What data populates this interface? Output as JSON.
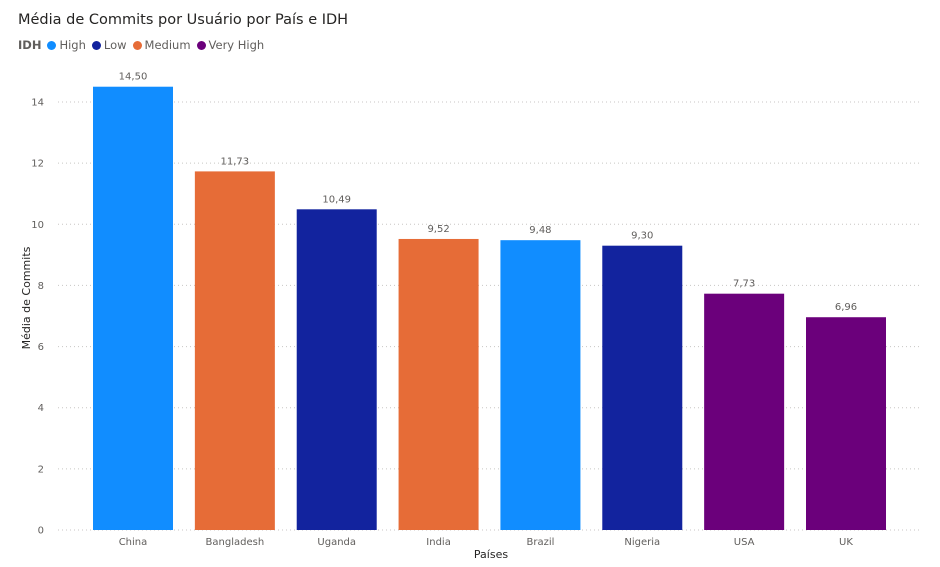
{
  "chart_data": {
    "type": "bar",
    "title": "Média de Commits por Usuário por País e IDH",
    "xlabel": "Países",
    "ylabel": "Média de Commits",
    "ylim": [
      0,
      15.5
    ],
    "yticks": [
      0,
      2,
      4,
      6,
      8,
      10,
      12,
      14
    ],
    "grid": true,
    "legend_title": "IDH",
    "legend_placement": "top-left",
    "legend": [
      {
        "name": "High",
        "color": "#118DFF"
      },
      {
        "name": "Low",
        "color": "#12239E"
      },
      {
        "name": "Medium",
        "color": "#E66C37"
      },
      {
        "name": "Very High",
        "color": "#6B007B"
      }
    ],
    "categories": [
      "China",
      "Bangladesh",
      "Uganda",
      "India",
      "Brazil",
      "Nigeria",
      "USA",
      "UK"
    ],
    "values": [
      14.5,
      11.73,
      10.49,
      9.52,
      9.48,
      9.3,
      7.73,
      6.96
    ],
    "value_labels": [
      "14,50",
      "11,73",
      "10,49",
      "9,52",
      "9,48",
      "9,30",
      "7,73",
      "6,96"
    ],
    "idh": [
      "High",
      "Medium",
      "Low",
      "Medium",
      "High",
      "Low",
      "Very High",
      "Very High"
    ]
  }
}
